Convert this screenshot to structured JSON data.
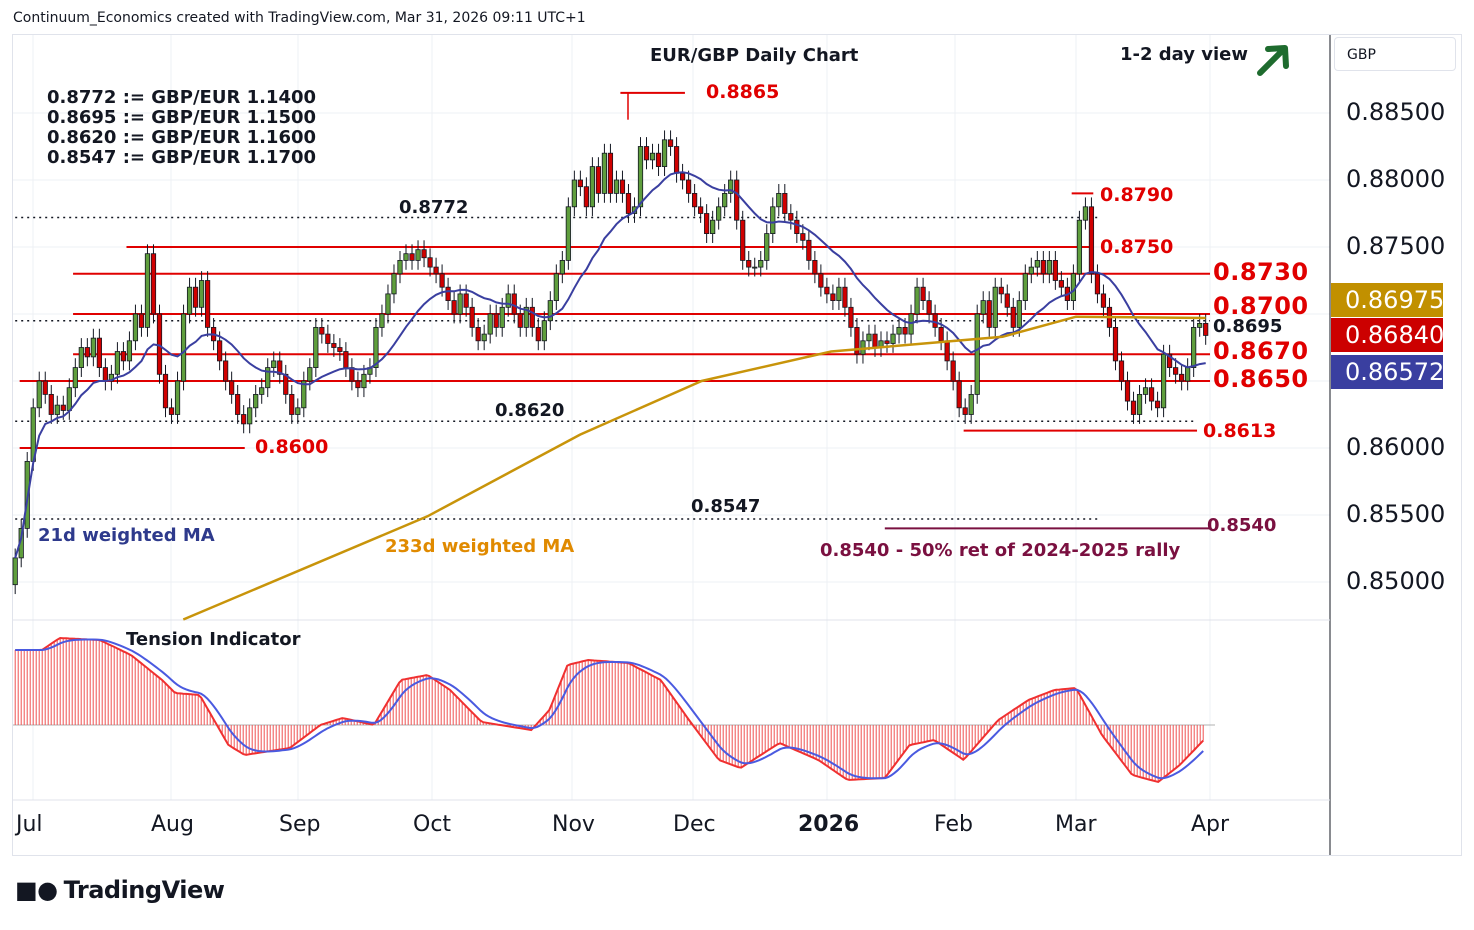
{
  "header": {
    "credit": "Continuum_Economics created with TradingView.com, Mar 31, 2026 09:11 UTC+1"
  },
  "title": "EUR/GBP Daily Chart",
  "view": {
    "label": "1-2 day view",
    "icon": "arrow-up-right-icon",
    "color": "#1e6b2e"
  },
  "conversions": [
    "0.8772 := GBP/EUR 1.1400",
    "0.8695 := GBP/EUR 1.1500",
    "0.8620 := GBP/EUR 1.1600",
    "0.8547 := GBP/EUR 1.1700"
  ],
  "currency": "GBP",
  "footer": {
    "logo": "TradingView"
  },
  "chart_data": {
    "type": "candlestick",
    "title": "EUR/GBP Daily Chart",
    "start": "2025-06-27",
    "end": "2026-03-31",
    "closes": [
      0.8518,
      0.854,
      0.859,
      0.863,
      0.865,
      0.864,
      0.8625,
      0.8632,
      0.8628,
      0.8645,
      0.866,
      0.8675,
      0.8668,
      0.8682,
      0.866,
      0.865,
      0.8655,
      0.8672,
      0.8665,
      0.868,
      0.87,
      0.869,
      0.8745,
      0.87,
      0.8655,
      0.863,
      0.8625,
      0.865,
      0.87,
      0.872,
      0.8705,
      0.8725,
      0.869,
      0.868,
      0.8665,
      0.865,
      0.864,
      0.8625,
      0.8618,
      0.863,
      0.864,
      0.8645,
      0.866,
      0.8665,
      0.8655,
      0.864,
      0.8625,
      0.863,
      0.865,
      0.866,
      0.869,
      0.8685,
      0.8678,
      0.8675,
      0.8672,
      0.866,
      0.865,
      0.8645,
      0.8655,
      0.866,
      0.869,
      0.87,
      0.8715,
      0.873,
      0.874,
      0.8745,
      0.874,
      0.8748,
      0.8742,
      0.8735,
      0.873,
      0.872,
      0.871,
      0.87,
      0.8715,
      0.8705,
      0.869,
      0.868,
      0.8685,
      0.87,
      0.869,
      0.8705,
      0.8715,
      0.87,
      0.869,
      0.8705,
      0.869,
      0.868,
      0.8695,
      0.871,
      0.873,
      0.874,
      0.878,
      0.88,
      0.8795,
      0.878,
      0.881,
      0.879,
      0.882,
      0.879,
      0.88,
      0.879,
      0.8775,
      0.878,
      0.8825,
      0.8815,
      0.882,
      0.881,
      0.883,
      0.8825,
      0.8805,
      0.88,
      0.879,
      0.878,
      0.8775,
      0.876,
      0.877,
      0.878,
      0.879,
      0.88,
      0.877,
      0.874,
      0.8735,
      0.8735,
      0.874,
      0.876,
      0.878,
      0.879,
      0.8775,
      0.877,
      0.876,
      0.8755,
      0.874,
      0.873,
      0.872,
      0.8715,
      0.871,
      0.872,
      0.8705,
      0.869,
      0.867,
      0.868,
      0.8685,
      0.8675,
      0.868,
      0.8678,
      0.8685,
      0.869,
      0.8685,
      0.87,
      0.872,
      0.871,
      0.87,
      0.869,
      0.868,
      0.8665,
      0.865,
      0.863,
      0.8625,
      0.864,
      0.87,
      0.871,
      0.869,
      0.872,
      0.8715,
      0.8705,
      0.869,
      0.871,
      0.873,
      0.8735,
      0.874,
      0.873,
      0.874,
      0.8725,
      0.872,
      0.871,
      0.873,
      0.877,
      0.878,
      0.873,
      0.8715,
      0.8705,
      0.869,
      0.8665,
      0.865,
      0.8635,
      0.8625,
      0.864,
      0.8645,
      0.8635,
      0.863,
      0.867,
      0.866,
      0.8655,
      0.865,
      0.866,
      0.869,
      0.8693,
      0.8684
    ],
    "ma233": {
      "name": "233d weighted MA",
      "color": "#c8940a",
      "points": [
        [
          "2025-08-04",
          0.8472
        ],
        [
          "2025-09-30",
          0.8549
        ],
        [
          "2025-11-03",
          0.861
        ],
        [
          "2025-12-03",
          0.865
        ],
        [
          "2026-01-02",
          0.8672
        ],
        [
          "2026-02-12",
          0.8683
        ],
        [
          "2026-03-01",
          0.8698
        ],
        [
          "2026-03-31",
          0.8697
        ]
      ]
    },
    "ma21": {
      "name": "21d weighted MA",
      "color": "#3a3fa0",
      "period": 21
    },
    "yaxis": {
      "ticks": [
        "0.88500",
        "0.88000",
        "0.87500",
        "0.86000",
        "0.85500",
        "0.85000"
      ],
      "tick_values": [
        0.885,
        0.88,
        0.875,
        0.86,
        0.855,
        0.85
      ],
      "range": [
        0.8472,
        0.8898
      ]
    },
    "xaxis": {
      "ticks": [
        "Jul",
        "Aug",
        "Sep",
        "Oct",
        "Nov",
        "Dec",
        "2026",
        "Feb",
        "Mar",
        "Apr"
      ]
    },
    "price_tags": [
      {
        "value": "0.86975",
        "color": "#c19000"
      },
      {
        "value": "0.86840",
        "color": "#cc0000"
      },
      {
        "value": "0.86572",
        "color": "#3a3fa0"
      }
    ],
    "levels": [
      {
        "price": 0.8865,
        "from": "2025-11-13",
        "to": "2025-11-29",
        "style": "red",
        "label": "0.8865"
      },
      {
        "price": 0.879,
        "from": "2026-02-28",
        "to": "2026-03-05",
        "style": "red",
        "label": "0.8790"
      },
      {
        "price": 0.8772,
        "from": "2025-06-27",
        "to": "2026-03-06",
        "style": "dotted",
        "label": "0.8772"
      },
      {
        "price": 0.875,
        "from": "2025-07-22",
        "to": "2026-03-05",
        "style": "red",
        "label": "0.8750"
      },
      {
        "price": 0.873,
        "from": "2025-07-10",
        "to": "2026-04-01",
        "style": "red",
        "label": "0.8730"
      },
      {
        "price": 0.87,
        "from": "2025-07-10",
        "to": "2026-04-01",
        "style": "red",
        "label": "0.8700"
      },
      {
        "price": 0.8695,
        "from": "2025-06-27",
        "to": "2026-04-01",
        "style": "dotted",
        "label": "0.8695"
      },
      {
        "price": 0.867,
        "from": "2025-07-10",
        "to": "2026-04-01",
        "style": "red",
        "label": "0.8670"
      },
      {
        "price": 0.865,
        "from": "2025-06-28",
        "to": "2026-04-01",
        "style": "red",
        "label": "0.8650"
      },
      {
        "price": 0.862,
        "from": "2025-06-27",
        "to": "2026-03-29",
        "style": "dotted",
        "label": "0.8620"
      },
      {
        "price": 0.8613,
        "from": "2026-02-03",
        "to": "2026-03-29",
        "style": "red",
        "label": "0.8613"
      },
      {
        "price": 0.86,
        "from": "2025-06-28",
        "to": "2025-08-19",
        "style": "red",
        "label": "0.8600"
      },
      {
        "price": 0.8547,
        "from": "2025-06-27",
        "to": "2026-03-06",
        "style": "dotted",
        "label": "0.8547"
      },
      {
        "price": 0.854,
        "from": "2026-01-15",
        "to": "2026-04-01",
        "style": "maroon",
        "label": "0.8540"
      }
    ],
    "annotation": "0.8540 - 50% ret of 2024-2025 rally",
    "indicator": {
      "name": "Tension Indicator",
      "zero": 0,
      "points": [
        [
          "2025-06-27",
          0.75
        ],
        [
          "2025-07-03",
          0.75
        ],
        [
          "2025-07-07",
          0.87
        ],
        [
          "2025-07-16",
          0.85
        ],
        [
          "2025-07-23",
          0.7
        ],
        [
          "2025-07-30",
          0.45
        ],
        [
          "2025-08-02",
          0.32
        ],
        [
          "2025-08-08",
          0.3
        ],
        [
          "2025-08-15",
          -0.2
        ],
        [
          "2025-08-19",
          -0.3
        ],
        [
          "2025-08-30",
          -0.23
        ],
        [
          "2025-09-06",
          0.0
        ],
        [
          "2025-09-11",
          0.07
        ],
        [
          "2025-09-18",
          0.0
        ],
        [
          "2025-09-24",
          0.45
        ],
        [
          "2025-09-30",
          0.5
        ],
        [
          "2025-10-05",
          0.35
        ],
        [
          "2025-10-12",
          0.03
        ],
        [
          "2025-10-23",
          -0.05
        ],
        [
          "2025-10-27",
          0.15
        ],
        [
          "2025-10-31",
          0.6
        ],
        [
          "2025-11-05",
          0.65
        ],
        [
          "2025-11-15",
          0.62
        ],
        [
          "2025-11-23",
          0.45
        ],
        [
          "2025-11-30",
          0.05
        ],
        [
          "2025-12-07",
          -0.35
        ],
        [
          "2025-12-12",
          -0.43
        ],
        [
          "2025-12-21",
          -0.18
        ],
        [
          "2025-12-30",
          -0.35
        ],
        [
          "2026-01-06",
          -0.55
        ],
        [
          "2026-01-15",
          -0.53
        ],
        [
          "2026-01-21",
          -0.2
        ],
        [
          "2026-01-27",
          -0.15
        ],
        [
          "2026-02-03",
          -0.35
        ],
        [
          "2026-02-11",
          0.05
        ],
        [
          "2026-02-18",
          0.25
        ],
        [
          "2026-02-24",
          0.35
        ],
        [
          "2026-03-01",
          0.37
        ],
        [
          "2026-03-07",
          -0.1
        ],
        [
          "2026-03-14",
          -0.5
        ],
        [
          "2026-03-20",
          -0.57
        ],
        [
          "2026-03-25",
          -0.4
        ],
        [
          "2026-03-31",
          -0.13
        ]
      ]
    }
  }
}
